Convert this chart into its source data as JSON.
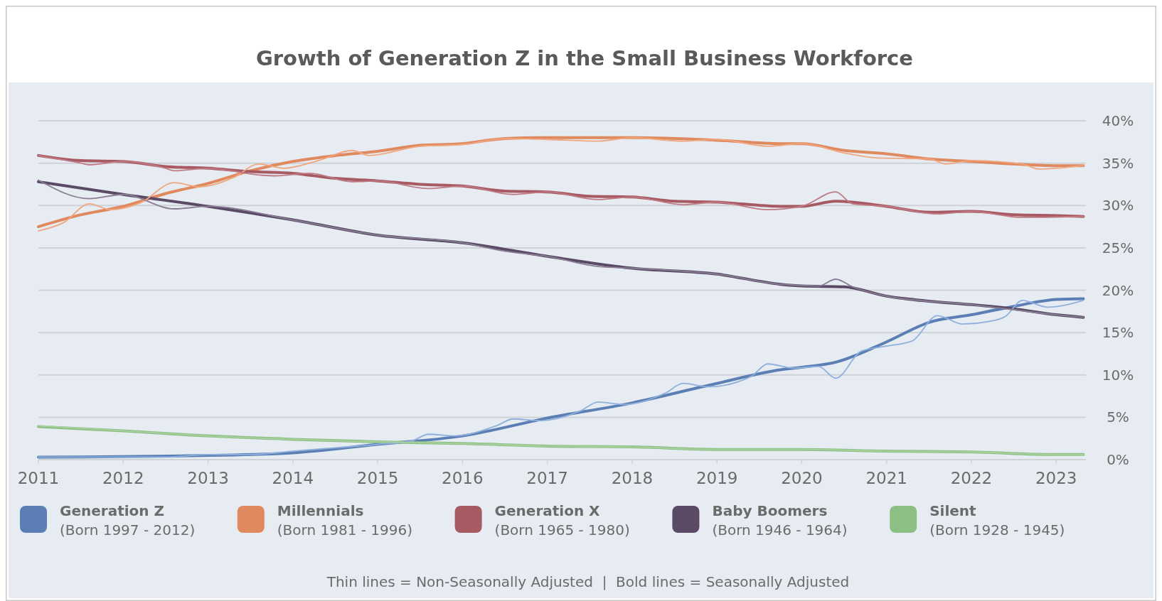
{
  "chart_data": {
    "type": "line",
    "title": "Growth of Generation Z in the Small Business Workforce",
    "annotations": [
      "Thin lines = Non-Seasonally Adjusted  |  Bold lines = Seasonally Adjusted"
    ],
    "xlim": [
      2011,
      2023.35
    ],
    "xticks": [
      2011,
      2012,
      2013,
      2014,
      2015,
      2016,
      2017,
      2018,
      2019,
      2020,
      2021,
      2022,
      2023
    ],
    "ylim": [
      0,
      40
    ],
    "yticks": [
      {
        "value": 0,
        "label": "0%"
      },
      {
        "value": 5,
        "label": "5%"
      },
      {
        "value": 10,
        "label": "10%"
      },
      {
        "value": 15,
        "label": "15%"
      },
      {
        "value": 20,
        "label": "20%"
      },
      {
        "value": 25,
        "label": "25%"
      },
      {
        "value": 30,
        "label": "30%"
      },
      {
        "value": 35,
        "label": "35%"
      },
      {
        "value": 40,
        "label": "40%"
      }
    ],
    "grid": "y",
    "legend": "bottom",
    "marker": "none",
    "line_style": "solid",
    "series": [
      {
        "name": "Generation Z\n(Born 1997 - 2012)",
        "color": "#5b7fb5",
        "x": [
          2011,
          2013,
          2014,
          2015,
          2016,
          2017,
          2018,
          2019,
          2019.75,
          2020,
          2020.4,
          2021,
          2021.5,
          2022,
          2022.5,
          2023,
          2023.32
        ],
        "values": [
          0.3,
          0.5,
          0.8,
          1.8,
          2.8,
          4.9,
          6.7,
          9.0,
          10.6,
          10.9,
          11.5,
          13.9,
          16.2,
          17.1,
          18.1,
          18.9,
          19.0
        ]
      },
      {
        "name": "Millennials\n(Born 1981 - 1996)",
        "color": "#e0895e",
        "x": [
          2011,
          2011.5,
          2012,
          2012.5,
          2013,
          2013.5,
          2014,
          2014.5,
          2015,
          2015.5,
          2016,
          2016.5,
          2017,
          2018,
          2019,
          2019.75,
          2020,
          2020.5,
          2021,
          2021.5,
          2022,
          2022.5,
          2023,
          2023.32
        ],
        "values": [
          27.5,
          28.9,
          29.9,
          31.4,
          32.6,
          34.1,
          35.2,
          35.9,
          36.4,
          37.1,
          37.3,
          37.9,
          38.0,
          38.0,
          37.7,
          37.3,
          37.3,
          36.5,
          36.1,
          35.5,
          35.2,
          34.9,
          34.7,
          34.7
        ]
      },
      {
        "name": "Generation X\n(Born 1965 - 1980)",
        "color": "#a85a63",
        "x": [
          2011,
          2011.5,
          2012,
          2012.5,
          2013,
          2013.5,
          2014,
          2014.5,
          2015,
          2015.5,
          2016,
          2016.5,
          2017,
          2017.5,
          2018,
          2018.5,
          2019,
          2019.75,
          2020,
          2020.4,
          2021,
          2021.5,
          2022,
          2022.5,
          2023,
          2023.32
        ],
        "values": [
          35.9,
          35.3,
          35.2,
          34.6,
          34.4,
          34.0,
          33.8,
          33.2,
          32.9,
          32.5,
          32.3,
          31.7,
          31.6,
          31.1,
          31.0,
          30.5,
          30.4,
          29.9,
          29.9,
          30.5,
          29.9,
          29.2,
          29.3,
          28.9,
          28.8,
          28.7
        ]
      },
      {
        "name": "Baby Boomers\n(Born 1946 - 1964)",
        "color": "#5a4a66",
        "x": [
          2011,
          2012,
          2013,
          2014,
          2015,
          2016,
          2017,
          2018,
          2019,
          2019.75,
          2020,
          2020.5,
          2021,
          2021.5,
          2022,
          2022.5,
          2023,
          2023.32
        ],
        "values": [
          32.8,
          31.3,
          29.9,
          28.3,
          26.5,
          25.6,
          24.0,
          22.6,
          21.9,
          20.7,
          20.5,
          20.4,
          19.3,
          18.7,
          18.3,
          17.8,
          17.1,
          16.8
        ]
      },
      {
        "name": "Silent\n(Born 1928 - 1945)",
        "color": "#8cbf84",
        "x": [
          2011,
          2012,
          2013,
          2014,
          2015,
          2016,
          2017,
          2018,
          2019,
          2020,
          2021,
          2022,
          2023,
          2023.32
        ],
        "values": [
          3.9,
          3.4,
          2.8,
          2.4,
          2.1,
          1.9,
          1.6,
          1.5,
          1.2,
          1.2,
          1.0,
          0.9,
          0.6,
          0.6
        ]
      },
      {
        "color": "#8fb0dd",
        "x": [
          2011,
          2012,
          2012.5,
          2013,
          2013.5,
          2014,
          2014.5,
          2015,
          2015.4,
          2015.6,
          2015.9,
          2016.4,
          2016.6,
          2016.9,
          2017.4,
          2017.6,
          2017.9,
          2018.4,
          2018.6,
          2018.9,
          2019.4,
          2019.6,
          2019.9,
          2020.2,
          2020.4,
          2020.7,
          2021,
          2021.3,
          2021.6,
          2021.9,
          2022.2,
          2022.4,
          2022.6,
          2022.9,
          2023.32
        ],
        "values": [
          0.3,
          0.3,
          0.3,
          0.6,
          0.6,
          1.0,
          1.4,
          1.8,
          2.2,
          3.0,
          2.8,
          4.0,
          4.8,
          4.6,
          5.8,
          6.8,
          6.5,
          7.9,
          9.0,
          8.6,
          9.8,
          11.3,
          10.8,
          11.0,
          9.6,
          12.8,
          13.4,
          14.0,
          17.0,
          16.0,
          16.3,
          16.9,
          18.8,
          18.0,
          18.8
        ]
      },
      {
        "color": "#f0a77f",
        "x": [
          2011,
          2011.3,
          2011.6,
          2011.85,
          2012.2,
          2012.6,
          2012.9,
          2013.3,
          2013.6,
          2013.9,
          2014.3,
          2014.7,
          2014.9,
          2015.5,
          2016,
          2016.5,
          2017,
          2017.6,
          2018,
          2018.6,
          2019,
          2019.6,
          2020,
          2020.5,
          2020.9,
          2021.5,
          2021.7,
          2022,
          2022.6,
          2022.8,
          2023.32
        ],
        "values": [
          27.0,
          28.0,
          30.2,
          29.5,
          30.3,
          32.7,
          32.2,
          33.3,
          34.9,
          34.4,
          35.3,
          36.5,
          35.9,
          37.0,
          37.2,
          37.9,
          37.8,
          37.6,
          38.0,
          37.6,
          37.8,
          37.0,
          37.3,
          36.2,
          35.6,
          35.5,
          34.9,
          35.3,
          34.9,
          34.3,
          34.7
        ]
      },
      {
        "color": "#c07a83",
        "x": [
          2011,
          2011.5,
          2011.6,
          2012,
          2012.5,
          2012.6,
          2013,
          2013.6,
          2013.8,
          2014.2,
          2014.7,
          2015,
          2015.6,
          2016,
          2016.6,
          2017,
          2017.6,
          2018,
          2018.6,
          2019,
          2019.6,
          2020,
          2020.4,
          2020.6,
          2021,
          2021.6,
          2022,
          2022.6,
          2023.32
        ],
        "values": [
          35.9,
          35.0,
          34.8,
          35.2,
          34.4,
          34.1,
          34.4,
          33.6,
          33.5,
          33.8,
          32.8,
          32.9,
          32.0,
          32.3,
          31.3,
          31.6,
          30.7,
          31.0,
          30.1,
          30.4,
          29.5,
          29.9,
          31.6,
          30.2,
          29.9,
          29.0,
          29.3,
          28.6,
          28.7
        ]
      },
      {
        "color": "#8a7e95",
        "x": [
          2011,
          2011.6,
          2012,
          2012.6,
          2013,
          2014,
          2015,
          2016,
          2016.5,
          2017,
          2017.6,
          2018,
          2019,
          2019.75,
          2020.2,
          2020.4,
          2020.6,
          2021,
          2022,
          2023,
          2023.32
        ],
        "values": [
          33.0,
          30.8,
          31.3,
          29.6,
          29.9,
          28.3,
          26.5,
          25.6,
          24.6,
          24.0,
          22.8,
          22.6,
          21.9,
          20.7,
          20.5,
          21.3,
          20.4,
          19.3,
          18.3,
          17.1,
          16.8
        ]
      },
      {
        "color": "#a9d09f",
        "x": [
          2011,
          2012,
          2013,
          2014,
          2015,
          2016,
          2017,
          2018,
          2019,
          2020,
          2021,
          2022,
          2023,
          2023.32
        ],
        "values": [
          4.0,
          3.4,
          2.8,
          2.4,
          2.1,
          1.9,
          1.6,
          1.5,
          1.2,
          1.2,
          1.0,
          0.9,
          0.6,
          0.6
        ]
      }
    ]
  }
}
